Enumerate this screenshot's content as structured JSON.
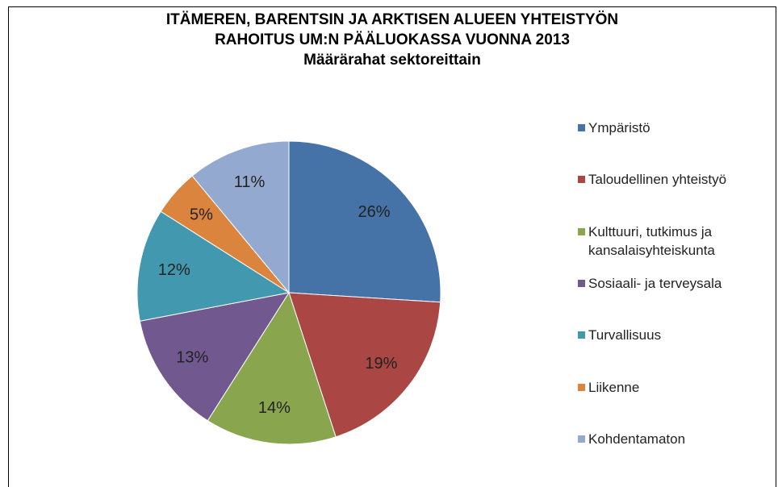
{
  "chart_data": {
    "type": "pie",
    "title": [
      "ITÄMEREN, BARENTSIN JA ARKTISEN ALUEEN YHTEISTYÖN",
      "RAHOITUS UM:N PÄÄLUOKASSA VUONNA 2013"
    ],
    "subtitle": "Määrärahat sektoreittain",
    "categories": [
      "Ympäristö",
      "Taloudellinen yhteistyö",
      "Kulttuuri, tutkimus ja kansalaisyhteiskunta",
      "Sosiaali- ja terveysala",
      "Turvallisuus",
      "Liikenne",
      "Kohdentamaton"
    ],
    "values": [
      26,
      19,
      14,
      13,
      12,
      5,
      11
    ],
    "value_labels": [
      "26%",
      "19%",
      "14%",
      "13%",
      "12%",
      "5%",
      "11%"
    ],
    "colors": [
      "#4572a7",
      "#aa4643",
      "#89a54e",
      "#71588f",
      "#4198af",
      "#db843d",
      "#93a9cf"
    ],
    "legend": "right"
  }
}
